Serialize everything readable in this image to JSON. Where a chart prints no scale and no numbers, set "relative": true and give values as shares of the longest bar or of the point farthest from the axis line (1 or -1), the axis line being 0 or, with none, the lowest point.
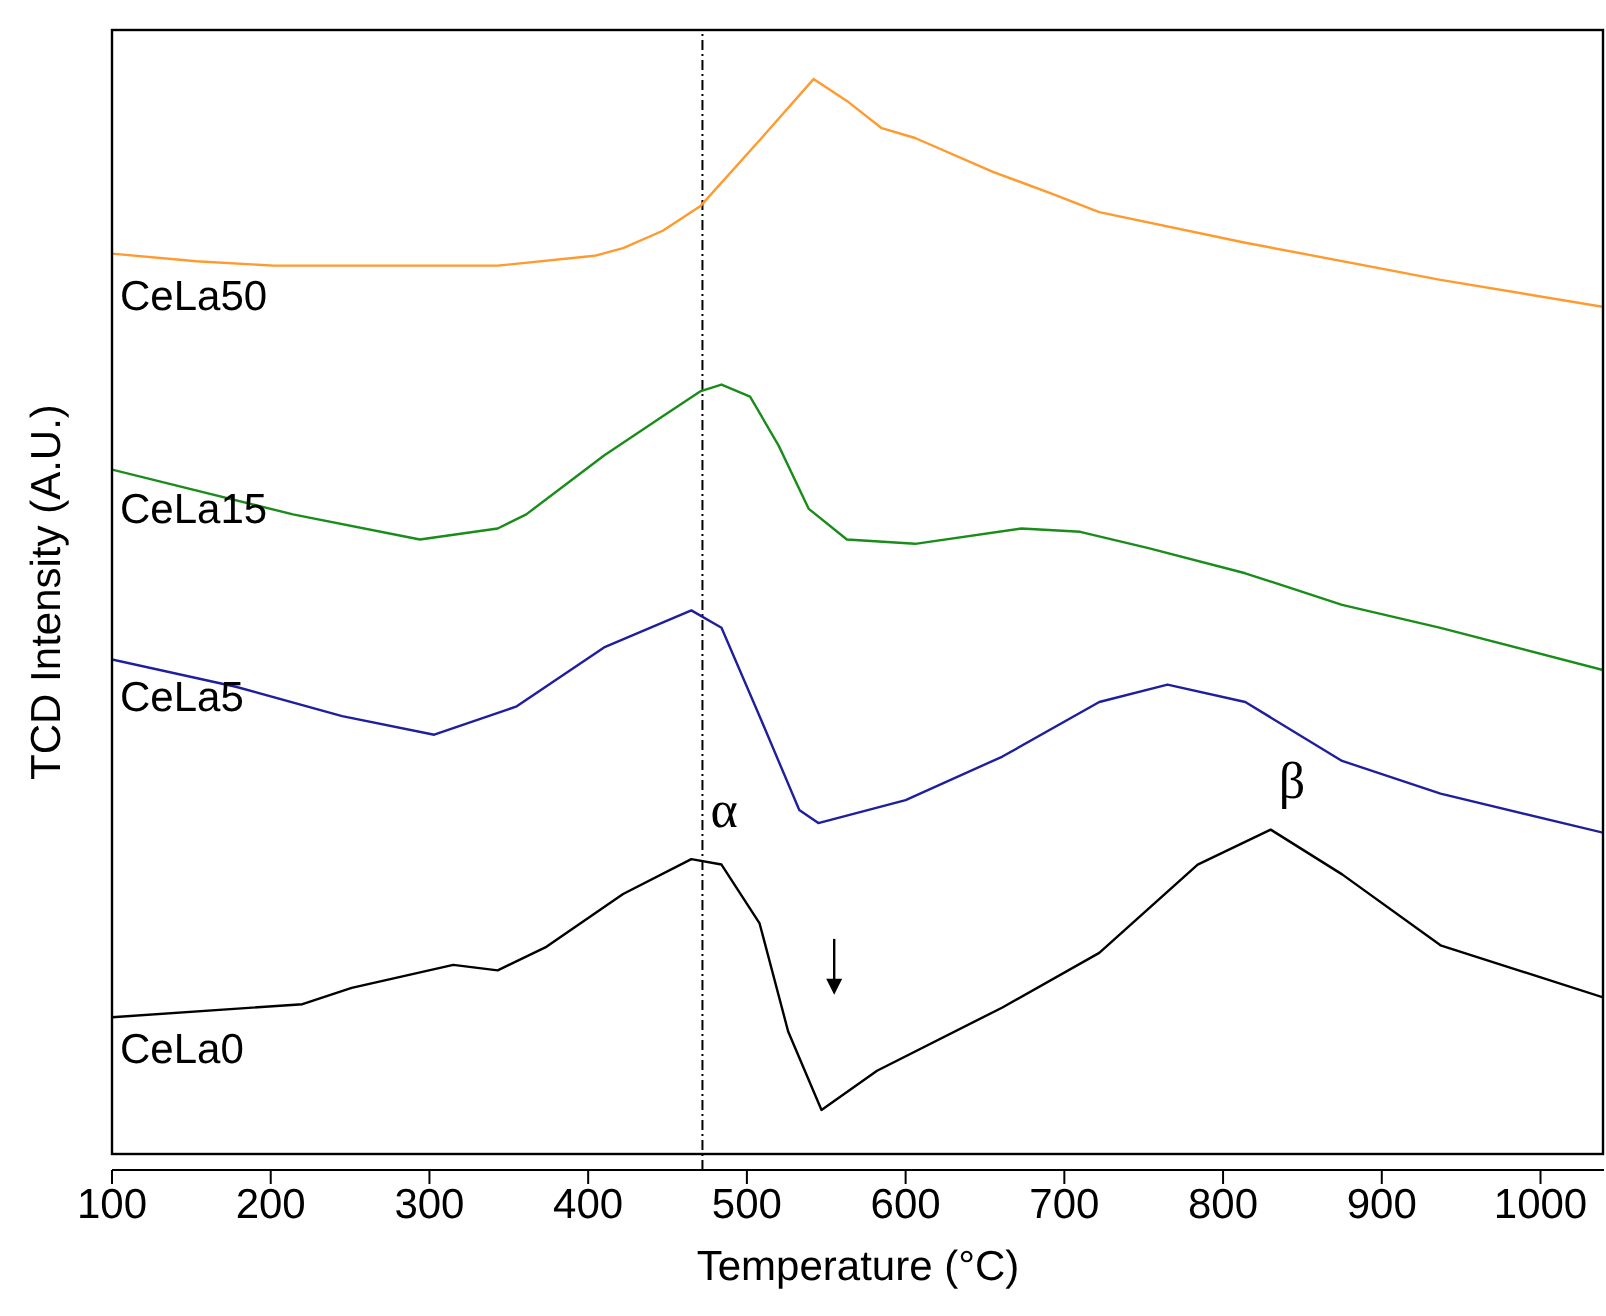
{
  "chart_data": {
    "type": "line",
    "relative": true,
    "xlabel": "Temperature (°C)",
    "ylabel": "TCD Intensity (A.U.)",
    "xlim": [
      100,
      1040
    ],
    "xticks": [
      100,
      200,
      300,
      400,
      500,
      600,
      700,
      800,
      900,
      1000
    ],
    "marker": "none",
    "line_style": "solid",
    "series": [
      {
        "name": "CeLa50",
        "color": "#ff9a2e",
        "x": [
          100,
          153,
          202,
          343,
          404,
          422,
          447,
          471,
          508,
          542,
          563,
          585,
          606,
          655,
          692,
          722,
          814,
          937,
          1040
        ],
        "values": [
          0.84,
          0.833,
          0.829,
          0.829,
          0.838,
          0.845,
          0.861,
          0.884,
          0.944,
          1.0,
          0.98,
          0.955,
          0.946,
          0.915,
          0.895,
          0.878,
          0.85,
          0.816,
          0.791
        ]
      },
      {
        "name": "CeLa15",
        "color": "#1a8c1a",
        "x": [
          100,
          214,
          294,
          343,
          361,
          410,
          447,
          471,
          484,
          502,
          520,
          539,
          563,
          606,
          673,
          710,
          753,
          814,
          875,
          937,
          1040
        ],
        "values": [
          0.642,
          0.601,
          0.578,
          0.588,
          0.601,
          0.655,
          0.691,
          0.714,
          0.72,
          0.709,
          0.664,
          0.606,
          0.578,
          0.574,
          0.588,
          0.585,
          0.57,
          0.547,
          0.518,
          0.497,
          0.458
        ]
      },
      {
        "name": "CeLa5",
        "color": "#1f1f9e",
        "x": [
          100,
          178,
          245,
          303,
          355,
          410,
          465,
          484,
          508,
          533,
          545,
          600,
          661,
          722,
          765,
          814,
          875,
          937,
          1040
        ],
        "values": [
          0.468,
          0.443,
          0.416,
          0.399,
          0.425,
          0.479,
          0.513,
          0.497,
          0.416,
          0.33,
          0.318,
          0.339,
          0.379,
          0.429,
          0.445,
          0.429,
          0.375,
          0.345,
          0.309
        ]
      },
      {
        "name": "CeLa0",
        "color": "#000000",
        "x": [
          100,
          220,
          251,
          315,
          343,
          373,
          422,
          465,
          484,
          508,
          526,
          547,
          582,
          661,
          722,
          784,
          830,
          875,
          937,
          1040
        ],
        "values": [
          0.14,
          0.152,
          0.167,
          0.188,
          0.183,
          0.204,
          0.253,
          0.285,
          0.28,
          0.226,
          0.127,
          0.055,
          0.091,
          0.149,
          0.199,
          0.28,
          0.312,
          0.271,
          0.206,
          0.158
        ]
      }
    ],
    "ref_lines": [
      {
        "axis": "x",
        "value": 472,
        "color": "#000000",
        "line_style": "dashed"
      }
    ],
    "annotations": [
      {
        "text": "α",
        "x": 472,
        "y": 0.285
      },
      {
        "text": "β",
        "x": 830,
        "y": 0.312
      }
    ]
  }
}
